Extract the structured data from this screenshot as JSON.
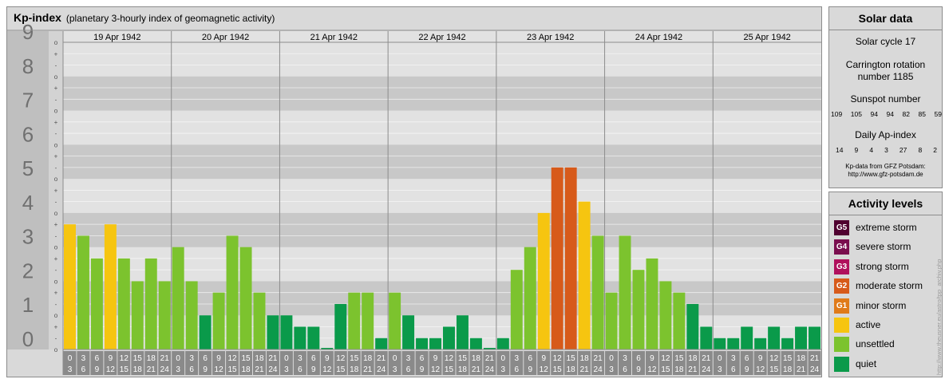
{
  "header": {
    "title": "Kp-index",
    "subtitle": "(planetary 3-hourly index of geomagnetic activity)"
  },
  "chart_data": {
    "type": "bar",
    "y_range": [
      0,
      9
    ],
    "y_tick_labels": [
      "0",
      "1",
      "2",
      "3",
      "4",
      "5",
      "6",
      "7",
      "8",
      "9"
    ],
    "minor_tick_labels": [
      "o",
      "-",
      "+",
      "o"
    ],
    "days": [
      "19 Apr 1942",
      "20 Apr 1942",
      "21 Apr 1942",
      "22 Apr 1942",
      "23 Apr 1942",
      "24 Apr 1942",
      "25 Apr 1942"
    ],
    "interval_labels": [
      [
        "0",
        "3"
      ],
      [
        "3",
        "6"
      ],
      [
        "6",
        "9"
      ],
      [
        "9",
        "12"
      ],
      [
        "12",
        "15"
      ],
      [
        "15",
        "18"
      ],
      [
        "18",
        "21"
      ],
      [
        "21",
        "24"
      ]
    ],
    "values": [
      3.667,
      3.333,
      2.667,
      3.667,
      2.667,
      2.0,
      2.667,
      2.0,
      3.0,
      2.0,
      1.0,
      1.667,
      3.333,
      3.0,
      1.667,
      1.0,
      1.0,
      0.667,
      0.667,
      0.0,
      1.333,
      1.667,
      1.667,
      0.333,
      1.667,
      1.0,
      0.333,
      0.333,
      0.667,
      1.0,
      0.333,
      0.0,
      0.333,
      2.333,
      3.0,
      4.0,
      5.333,
      5.333,
      4.333,
      3.333,
      1.667,
      3.333,
      2.333,
      2.667,
      2.0,
      1.667,
      1.333,
      0.667,
      0.333,
      0.333,
      0.667,
      0.333,
      0.667,
      0.333,
      0.667,
      0.667
    ],
    "level_colors": {
      "quiet": "#0a9a4a",
      "unsettled": "#7cc32e",
      "active": "#f6c510",
      "G1": "#e07b1a",
      "G2": "#d75a1a",
      "G3": "#b0105c",
      "G4": "#7a0e4e",
      "G5": "#500030"
    }
  },
  "solar": {
    "title": "Solar data",
    "cycle": "Solar cycle 17",
    "carrington_1": "Carrington rotation",
    "carrington_2": "number 1185",
    "sunspot_title": "Sunspot number",
    "sunspots": [
      "109",
      "105",
      "94",
      "94",
      "82",
      "85",
      "59"
    ],
    "ap_title": "Daily Ap-index",
    "ap": [
      "14",
      "9",
      "4",
      "3",
      "27",
      "8",
      "2"
    ],
    "note_1": "Kp-data from GFZ Potsdam:",
    "note_2": "http://www.gfz-potsdam.de"
  },
  "levels": {
    "title": "Activity levels",
    "items": [
      {
        "badge": "G5",
        "label": "extreme storm",
        "color": "#500030"
      },
      {
        "badge": "G4",
        "label": "severe storm",
        "color": "#7a0e4e"
      },
      {
        "badge": "G3",
        "label": "strong storm",
        "color": "#b0105c"
      },
      {
        "badge": "G2",
        "label": "moderate storm",
        "color": "#d75a1a"
      },
      {
        "badge": "G1",
        "label": "minor storm",
        "color": "#e07b1a"
      },
      {
        "badge": "",
        "label": "active",
        "color": "#f6c510"
      },
      {
        "badge": "",
        "label": "unsettled",
        "color": "#7cc32e"
      },
      {
        "badge": "",
        "label": "quiet",
        "color": "#0a9a4a"
      }
    ]
  },
  "credit": "http://www.theusner.eu/astro/tpp_archiv.php"
}
